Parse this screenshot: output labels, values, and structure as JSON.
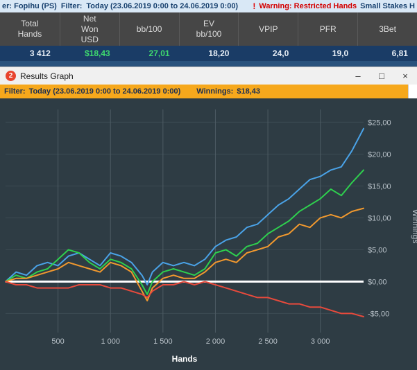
{
  "top_bar": {
    "player_fragment": "er: Fopihu (PS)",
    "filter_label": "Filter:",
    "filter_value": "Today (23.06.2019 0:00 to 24.06.2019 0:00)",
    "warning_icon": "!",
    "warning_text": "Warning: Restricted Hands",
    "warning_suffix": "Small Stakes H"
  },
  "stats": {
    "columns": [
      {
        "header": "Total\nHands",
        "value": "3 412",
        "color": "#e6edf5"
      },
      {
        "header": "Net\nWon\nUSD",
        "value": "$18,43",
        "color": "#3fd96e"
      },
      {
        "header": "bb/100",
        "value": "27,01",
        "color": "#3fd96e"
      },
      {
        "header": "EV\nbb/100",
        "value": "18,20",
        "color": "#e6edf5"
      },
      {
        "header": "VPIP",
        "value": "24,0",
        "color": "#e6edf5"
      },
      {
        "header": "PFR",
        "value": "19,0",
        "color": "#e6edf5"
      },
      {
        "header": "3Bet",
        "value": "6,81",
        "color": "#e6edf5"
      }
    ]
  },
  "window": {
    "title": "Results Graph",
    "icon_text": "2",
    "controls": {
      "minimize": "–",
      "maximize": "□",
      "close": "×"
    }
  },
  "filter_bar": {
    "filter_label": "Filter:",
    "filter_value": "Today (23.06.2019 0:00 to 24.06.2019 0:00)",
    "winnings_label": "Winnings:",
    "winnings_value": "$18,43"
  },
  "chart_data": {
    "type": "line",
    "title": "",
    "xlabel": "Hands",
    "ylabel": "Winnings",
    "xlim": [
      0,
      3412
    ],
    "ylim": [
      -8,
      27
    ],
    "x_ticks": [
      500,
      1000,
      1500,
      2000,
      2500,
      3000
    ],
    "x_tick_labels": [
      "500",
      "1 000",
      "1 500",
      "2 000",
      "2 500",
      "3 000"
    ],
    "y_ticks": [
      25,
      20,
      15,
      10,
      5,
      0,
      -5
    ],
    "y_tick_labels": [
      "$25,00",
      "$20,00",
      "$15,00",
      "$10,00",
      "$5,00",
      "$0,00",
      "-$5,00"
    ],
    "zero_line": true,
    "grid": true,
    "background": "#2e3c44",
    "zero_line_color": "#ffffff",
    "x": [
      0,
      100,
      200,
      300,
      400,
      500,
      600,
      700,
      800,
      900,
      1000,
      1100,
      1200,
      1300,
      1350,
      1400,
      1500,
      1600,
      1700,
      1800,
      1900,
      2000,
      2100,
      2200,
      2300,
      2400,
      2500,
      2600,
      2700,
      2800,
      2900,
      3000,
      3100,
      3200,
      3300,
      3412
    ],
    "series": [
      {
        "name": "blue-line",
        "color": "#4aa3e8",
        "values": [
          0,
          1.5,
          1.0,
          2.5,
          3.0,
          2.5,
          4.0,
          4.5,
          3.5,
          2.5,
          4.5,
          4.0,
          3.0,
          1.0,
          -0.5,
          1.5,
          3.0,
          2.5,
          3.0,
          2.5,
          3.5,
          5.5,
          6.5,
          7.0,
          8.5,
          9.0,
          10.5,
          12.0,
          13.0,
          14.5,
          16.0,
          16.5,
          17.5,
          18.0,
          20.5,
          24.0
        ]
      },
      {
        "name": "green-line",
        "color": "#2ed04e",
        "values": [
          0,
          1.0,
          0.5,
          1.5,
          2.0,
          3.5,
          5.0,
          4.5,
          3.0,
          2.0,
          3.5,
          3.0,
          2.0,
          -0.5,
          -2.0,
          0.0,
          1.5,
          2.0,
          1.5,
          1.0,
          2.0,
          4.5,
          5.0,
          4.0,
          5.5,
          6.0,
          7.5,
          8.5,
          9.5,
          11.0,
          12.0,
          13.0,
          14.5,
          13.5,
          15.5,
          17.5
        ]
      },
      {
        "name": "orange-line",
        "color": "#f2992e",
        "values": [
          0,
          0.5,
          0.5,
          1.0,
          1.5,
          2.0,
          3.0,
          2.5,
          2.0,
          1.5,
          3.0,
          2.5,
          1.5,
          -1.5,
          -3.0,
          -1.0,
          0.5,
          1.0,
          0.5,
          0.5,
          1.5,
          3.0,
          3.5,
          3.0,
          4.5,
          5.0,
          5.5,
          7.0,
          7.5,
          9.0,
          8.5,
          10.0,
          10.5,
          10.0,
          11.0,
          11.5
        ]
      },
      {
        "name": "red-line",
        "color": "#e84a3c",
        "values": [
          0,
          -0.5,
          -0.5,
          -1.0,
          -1.0,
          -1.0,
          -1.0,
          -0.5,
          -0.5,
          -0.5,
          -1.0,
          -1.0,
          -1.5,
          -2.0,
          -2.5,
          -1.5,
          -0.5,
          -0.5,
          0.0,
          -0.5,
          0.0,
          -0.5,
          -1.0,
          -1.5,
          -2.0,
          -2.5,
          -2.5,
          -3.0,
          -3.5,
          -3.5,
          -4.0,
          -4.0,
          -4.5,
          -5.0,
          -5.0,
          -5.5
        ]
      }
    ]
  }
}
